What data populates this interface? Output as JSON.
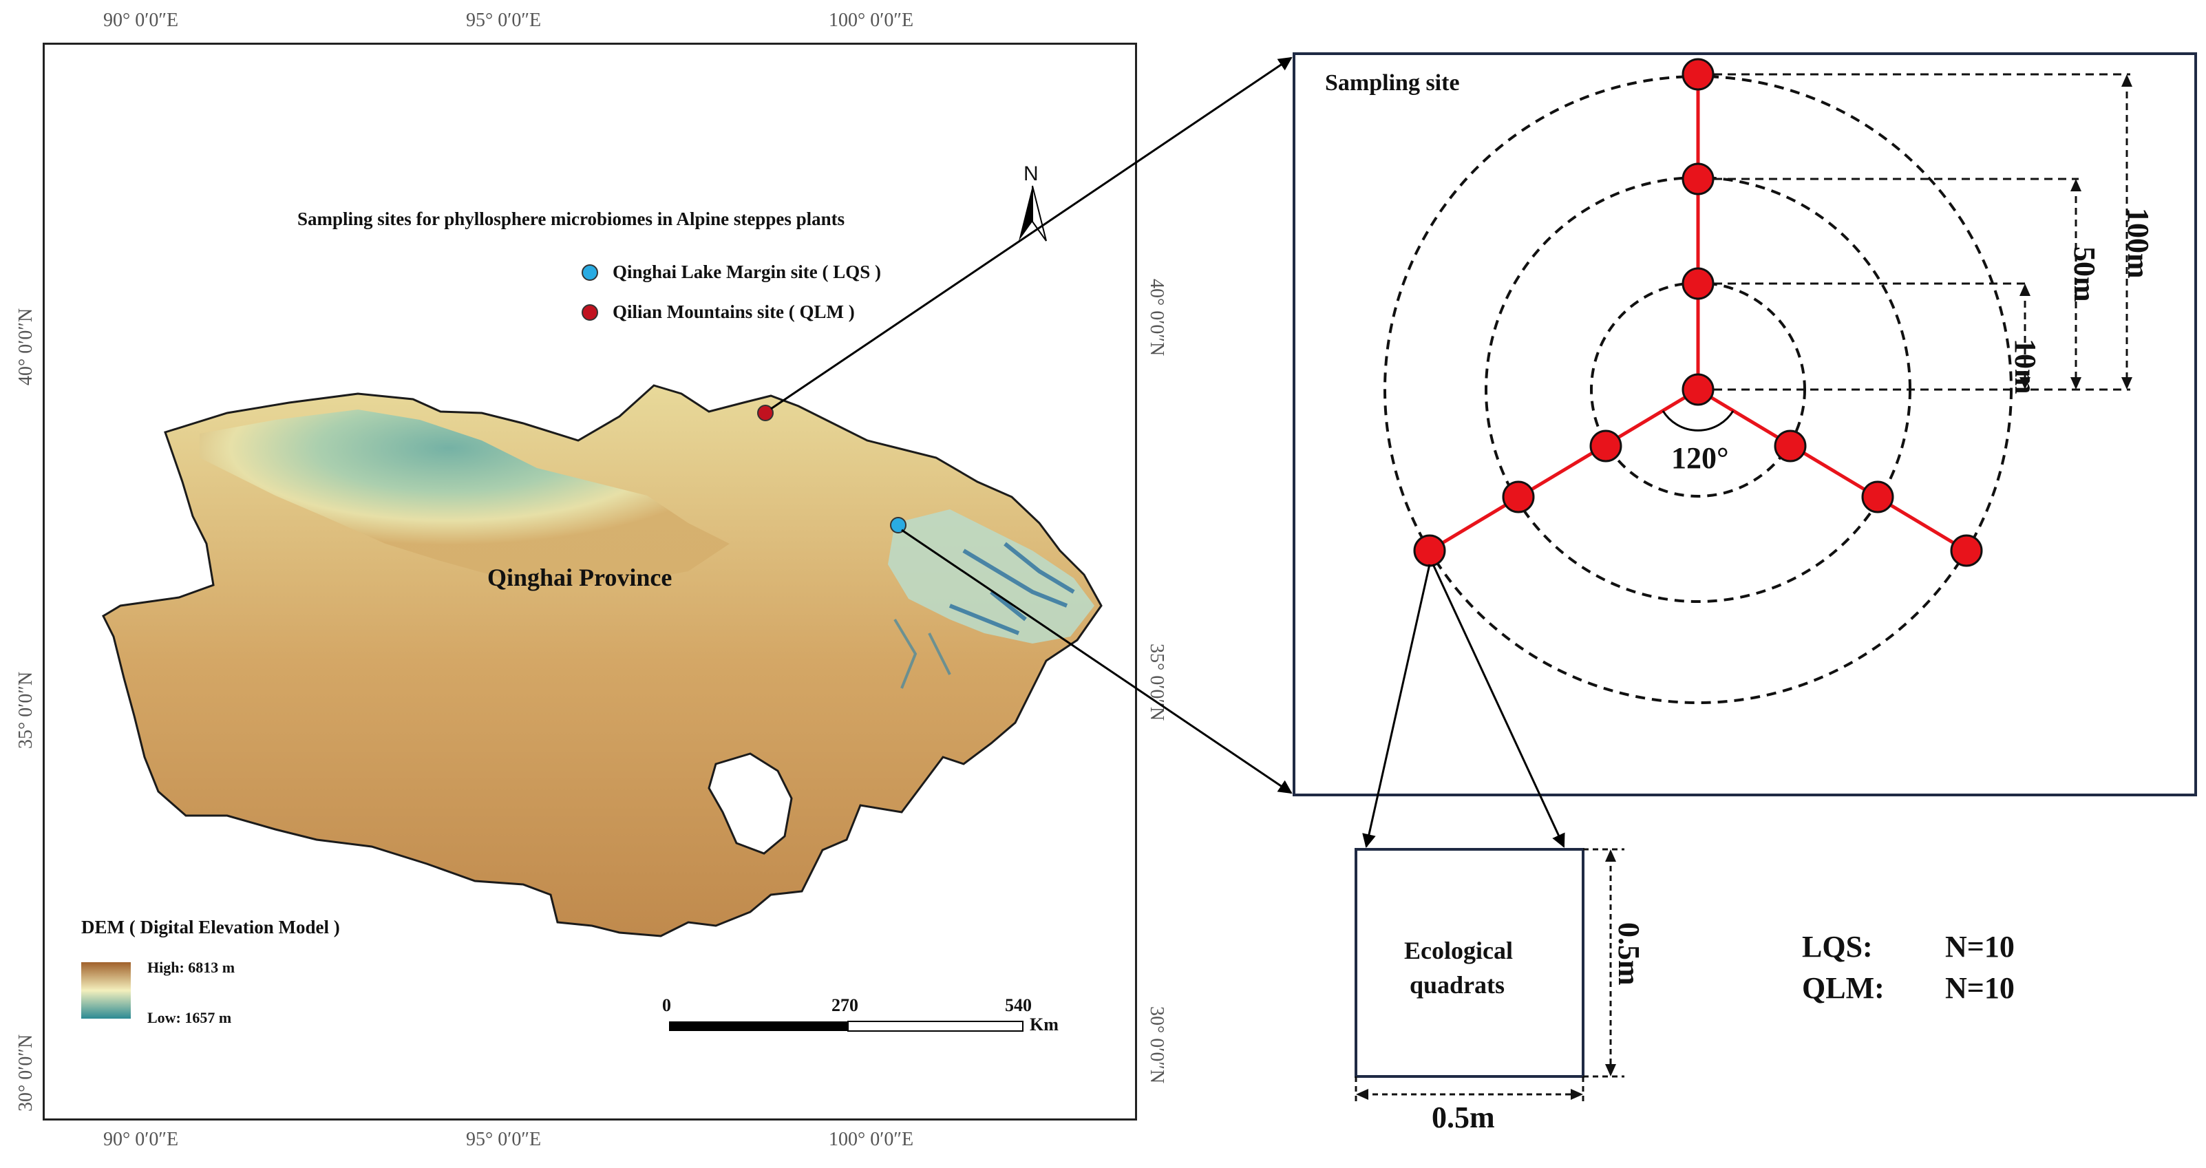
{
  "map": {
    "title": "Sampling sites for phyllosphere microbiomes in Alpine steppes plants",
    "region_label": "Qinghai Province",
    "north_label": "N",
    "longitude_labels": [
      "90° 0′0″E",
      "95° 0′0″E",
      "100° 0′0″E"
    ],
    "latitude_labels": [
      "40° 0′0″N",
      "35° 0′0″N",
      "30° 0′0″N"
    ],
    "legend": [
      {
        "label": "Qinghai Lake Margin site ( LQS )",
        "color": "#29abe2"
      },
      {
        "label": "Qilian Mountains site ( QLM )",
        "color": "#c1121f"
      }
    ],
    "dem": {
      "title": "DEM ( Digital Elevation Model )",
      "high": "High: 6813 m",
      "low": "Low: 1657 m",
      "high_color": "#a0612b",
      "mid_color": "#f3efbd",
      "low_color": "#2c8a94"
    },
    "scale_bar": {
      "ticks": [
        "0",
        "270",
        "540"
      ],
      "unit": "Km"
    }
  },
  "diagram": {
    "title": "Sampling site",
    "angle_label": "120°",
    "radius_labels": [
      "10m",
      "50m",
      "100m"
    ],
    "quadrat_label_line1": "Ecological",
    "quadrat_label_line2": "quadrats",
    "quadrat_width": "0.5m",
    "quadrat_height": "0.5m",
    "point_color": "#e8131b"
  },
  "summary": [
    {
      "site": "LQS:",
      "n": "N=10"
    },
    {
      "site": "QLM:",
      "n": "N=10"
    }
  ]
}
